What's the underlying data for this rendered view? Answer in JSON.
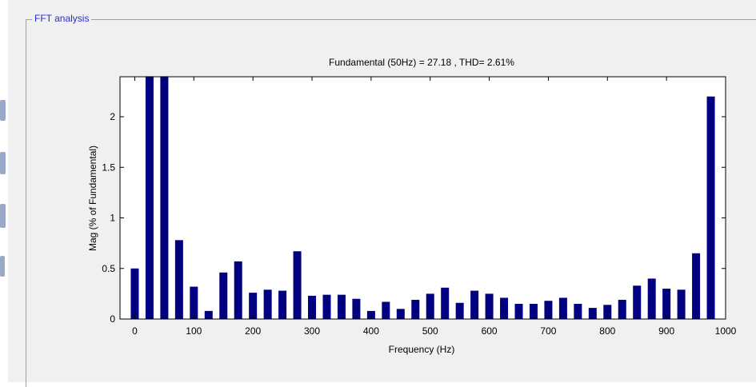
{
  "panel": {
    "title": "FFT analysis"
  },
  "chart_data": {
    "type": "bar",
    "title": "Fundamental (50Hz) = 27.18 , THD= 2.61%",
    "xlabel": "Frequency (Hz)",
    "ylabel": "Mag (% of Fundamental)",
    "xlim": [
      -25,
      1000
    ],
    "ylim": [
      0,
      2.4
    ],
    "bar_color": "#000080",
    "frame_color": "#000000",
    "grid": false,
    "x": [
      0,
      25,
      50,
      75,
      100,
      125,
      150,
      175,
      200,
      225,
      250,
      275,
      300,
      325,
      350,
      375,
      400,
      425,
      450,
      475,
      500,
      525,
      550,
      575,
      600,
      625,
      650,
      675,
      700,
      725,
      750,
      775,
      800,
      825,
      850,
      875,
      900,
      925,
      950,
      975
    ],
    "values": [
      0.5,
      2.4,
      2.4,
      0.78,
      0.32,
      0.08,
      0.46,
      0.57,
      0.26,
      0.29,
      0.28,
      0.67,
      0.23,
      0.24,
      0.24,
      0.2,
      0.08,
      0.17,
      0.1,
      0.19,
      0.25,
      0.31,
      0.16,
      0.28,
      0.25,
      0.21,
      0.15,
      0.15,
      0.18,
      0.21,
      0.15,
      0.11,
      0.14,
      0.19,
      0.33,
      0.4,
      0.3,
      0.29,
      0.65,
      2.2
    ],
    "xticks": [
      0,
      100,
      200,
      300,
      400,
      500,
      600,
      700,
      800,
      900,
      1000
    ],
    "yticks": [
      0,
      0.5,
      1,
      1.5,
      2
    ],
    "xtick_labels": [
      "0",
      "100",
      "200",
      "300",
      "400",
      "500",
      "600",
      "700",
      "800",
      "900",
      "1000"
    ],
    "ytick_labels": [
      "0",
      "0.5",
      "1",
      "1.5",
      "2"
    ]
  }
}
